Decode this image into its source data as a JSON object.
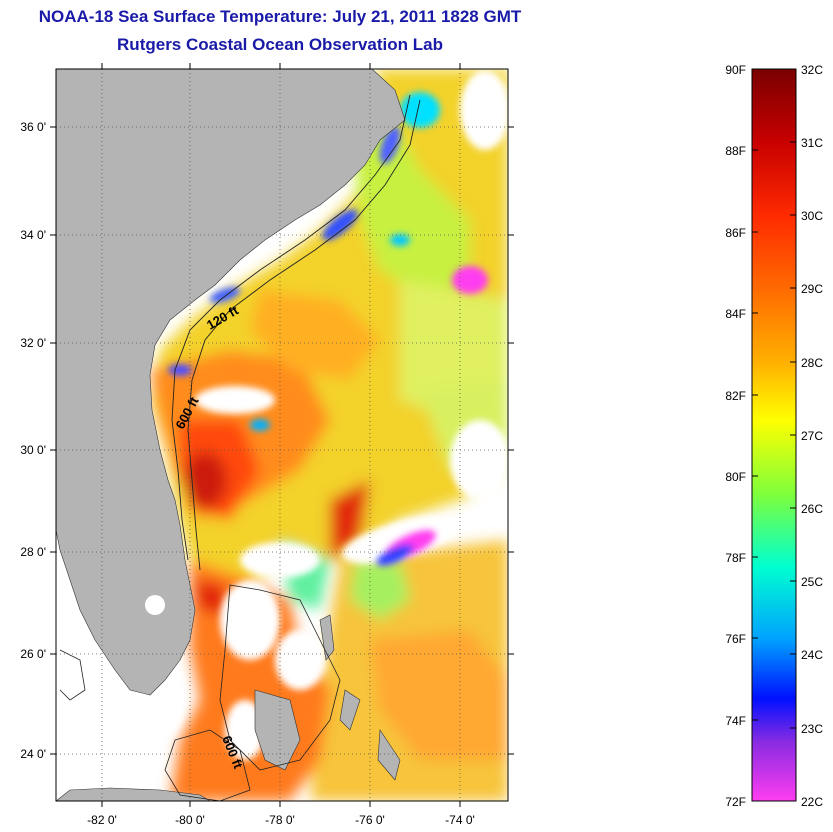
{
  "title": {
    "line1": "NOAA-18 Sea Surface Temperature:  July 21, 2011 1828 GMT",
    "line2": "Rutgers Coastal Ocean Observation Lab"
  },
  "map": {
    "latitude_labels": [
      "36 0'",
      "34 0'",
      "32 0'",
      "30 0'",
      "28 0'",
      "26 0'",
      "24 0'"
    ],
    "longitude_labels": [
      "-82 0'",
      "-80 0'",
      "-78 0'",
      "-76 0'",
      "-74 0'"
    ],
    "isobath_labels": [
      "120 ft",
      "600 ft",
      "600 ft"
    ],
    "land_color": "#b4b4b4",
    "cloud_mask_color": "#ffffff"
  },
  "colorbar": {
    "fahrenheit_labels": [
      "90F",
      "88F",
      "86F",
      "84F",
      "82F",
      "80F",
      "78F",
      "76F",
      "74F",
      "72F"
    ],
    "celsius_labels": [
      "32C",
      "31C",
      "30C",
      "29C",
      "28C",
      "27C",
      "26C",
      "25C",
      "24C",
      "23C",
      "22C"
    ],
    "gradient": [
      "#7a0000",
      "#c80000",
      "#ff2a00",
      "#ff6a00",
      "#ffb000",
      "#ffff00",
      "#7fff3a",
      "#00ffd0",
      "#00a0ff",
      "#0010ff",
      "#8a2be2",
      "#ff3df0"
    ]
  }
}
